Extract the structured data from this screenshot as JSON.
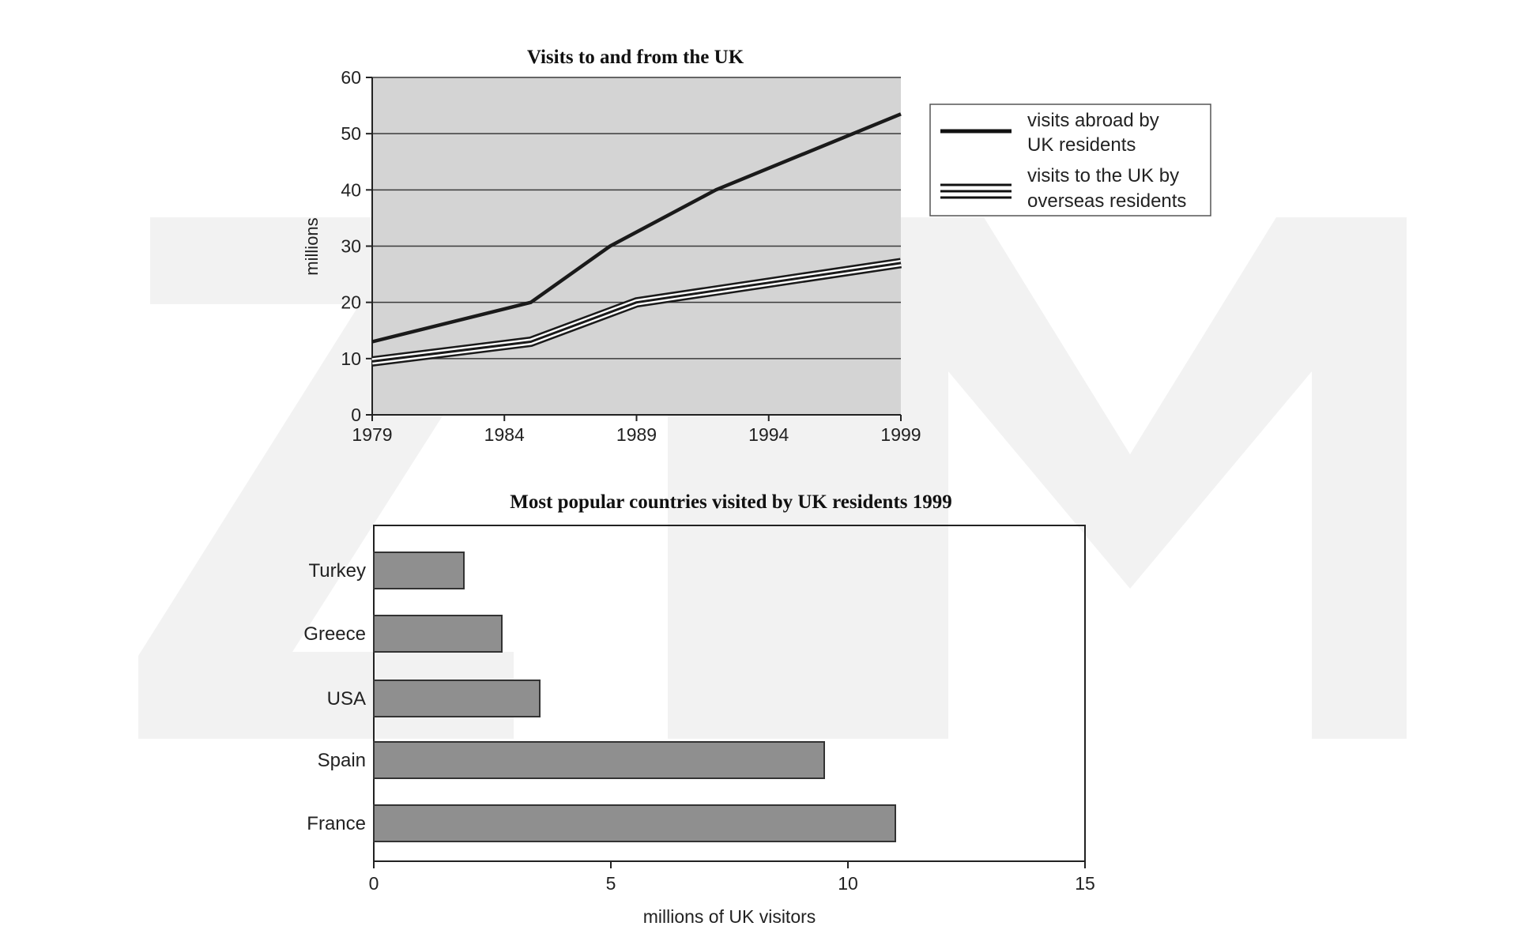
{
  "colors": {
    "plot_bg": "#d4d4d4",
    "gridline": "#3a3a3a",
    "line": "#1a1a1a",
    "bar_fill": "#8f8f8f",
    "bar_stroke": "#333333",
    "watermark": "#f2f2f2"
  },
  "chart_data": [
    {
      "type": "line",
      "title": "Visits to and from the UK",
      "xlabel": "",
      "ylabel": "millions",
      "xlim": [
        1979,
        1999
      ],
      "ylim": [
        0,
        60
      ],
      "x_ticks": [
        1979,
        1984,
        1989,
        1994,
        1999
      ],
      "y_ticks": [
        0,
        10,
        20,
        30,
        40,
        50,
        60
      ],
      "grid": true,
      "legend_position": "right",
      "series": [
        {
          "name": "visits abroad by UK residents",
          "style": "single-line",
          "points": [
            [
              1979,
              13
            ],
            [
              1985,
              20
            ],
            [
              1988,
              30
            ],
            [
              1992,
              40
            ],
            [
              1999,
              53.5
            ]
          ]
        },
        {
          "name": "visits to the UK by overseas residents",
          "style": "triple-line",
          "points": [
            [
              1979,
              9.5
            ],
            [
              1985,
              13
            ],
            [
              1989,
              20
            ],
            [
              1994,
              23.5
            ],
            [
              1999,
              27
            ]
          ]
        }
      ]
    },
    {
      "type": "bar",
      "orientation": "horizontal",
      "title": "Most popular countries visited by UK residents 1999",
      "xlabel": "millions of UK visitors",
      "ylabel": "",
      "xlim": [
        0,
        15
      ],
      "x_ticks": [
        0,
        5,
        10,
        15
      ],
      "grid": false,
      "categories": [
        "Turkey",
        "Greece",
        "USA",
        "Spain",
        "France"
      ],
      "values": [
        1.9,
        2.7,
        3.5,
        9.5,
        11
      ]
    }
  ]
}
